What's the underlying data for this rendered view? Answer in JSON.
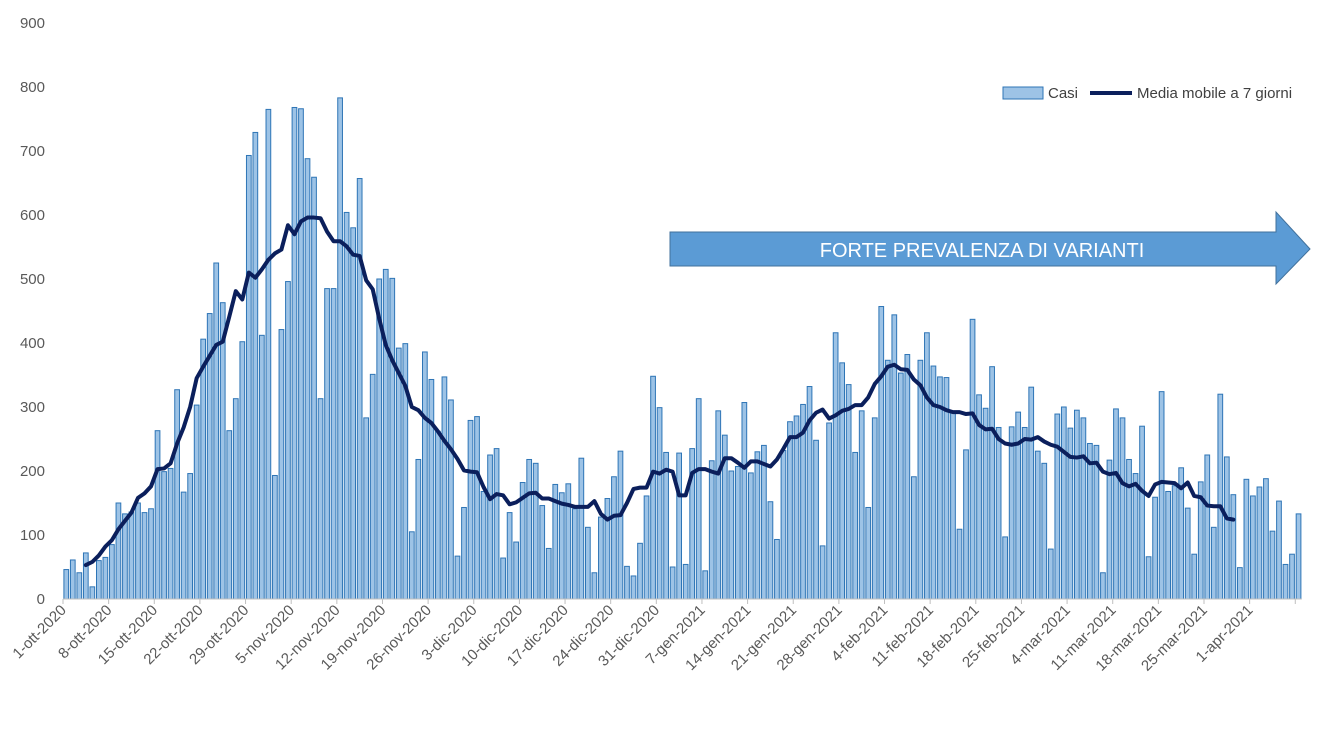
{
  "colors": {
    "bar_fill": "#9DC3E6",
    "bar_stroke": "#2E75B6",
    "line": "#0B1F5C",
    "axis": "#BFBFBF",
    "banner": "#5B9BD5"
  },
  "legend": {
    "bars_label": "Casi",
    "line_label": "Media mobile a 7 giorni"
  },
  "banner": {
    "text": "FORTE PREVALENZA DI VARIANTI",
    "start_date": "31-dic-2020"
  },
  "chart_data": {
    "type": "bar",
    "ylim": [
      0,
      900
    ],
    "yticks": [
      0,
      100,
      200,
      300,
      400,
      500,
      600,
      700,
      800,
      900
    ],
    "xtick_labels": [
      "1-ott-2020",
      "8-ott-2020",
      "15-ott-2020",
      "22-ott-2020",
      "29-ott-2020",
      "5-nov-2020",
      "12-nov-2020",
      "19-nov-2020",
      "26-nov-2020",
      "3-dic-2020",
      "10-dic-2020",
      "17-dic-2020",
      "24-dic-2020",
      "31-dic-2020",
      "7-gen-2021",
      "14-gen-2021",
      "21-gen-2021",
      "28-gen-2021",
      "4-feb-2021",
      "11-feb-2021",
      "18-feb-2021",
      "25-feb-2021",
      "4-mar-2021",
      "11-mar-2021",
      "18-mar-2021",
      "25-mar-2021",
      "1-apr-2021"
    ],
    "series": [
      {
        "name": "Casi",
        "type": "bar",
        "values": [
          46,
          61,
          41,
          72,
          19,
          60,
          65,
          85,
          150,
          133,
          136,
          150,
          135,
          141,
          263,
          199,
          204,
          327,
          167,
          196,
          303,
          406,
          446,
          525,
          463,
          263,
          313,
          402,
          693,
          729,
          412,
          765,
          193,
          421,
          496,
          768,
          766,
          688,
          659,
          313,
          485,
          485,
          783,
          604,
          580,
          657,
          283,
          351,
          500,
          515,
          501,
          392,
          399,
          105,
          218,
          386,
          343,
          262,
          347,
          311,
          67,
          143,
          279,
          285,
          168,
          225,
          235,
          64,
          135,
          89,
          182,
          218,
          212,
          146,
          79,
          179,
          166,
          180,
          141,
          220,
          112,
          41,
          128,
          157,
          191,
          231,
          51,
          36,
          87,
          161,
          348,
          299,
          229,
          50,
          228,
          54,
          235,
          313,
          44,
          216,
          294,
          256,
          200,
          207,
          307,
          197,
          230,
          240,
          152,
          93,
          232,
          277,
          286,
          304,
          332,
          248,
          83,
          275,
          416,
          369,
          335,
          229,
          294,
          143,
          283,
          457,
          373,
          444,
          353,
          382,
          191,
          373,
          416,
          364,
          347,
          346,
          291,
          109,
          233,
          437,
          319,
          298,
          363,
          268,
          97,
          269,
          292,
          268,
          331,
          231,
          212,
          78,
          289,
          300,
          267,
          295,
          283,
          243,
          240,
          41,
          217,
          297,
          283,
          218,
          196,
          270,
          66,
          159,
          324,
          168,
          177,
          205,
          142,
          70,
          183,
          225,
          112,
          320,
          222,
          163,
          49,
          187,
          161,
          175,
          188,
          106,
          153,
          54,
          70,
          133
        ]
      },
      {
        "name": "Media mobile a 7 giorni",
        "type": "line",
        "start_index": 3,
        "values": [
          53,
          58,
          68,
          82,
          92,
          109,
          122,
          135,
          158,
          165,
          176,
          203,
          204,
          212,
          243,
          268,
          300,
          345,
          363,
          380,
          397,
          402,
          441,
          481,
          468,
          510,
          502,
          515,
          530,
          540,
          546,
          584,
          570,
          590,
          596,
          596,
          595,
          574,
          559,
          559,
          551,
          538,
          536,
          498,
          484,
          438,
          397,
          373,
          353,
          333,
          300,
          295,
          283,
          275,
          262,
          247,
          234,
          219,
          201,
          199,
          198,
          175,
          156,
          164,
          162,
          148,
          151,
          158,
          165,
          166,
          157,
          157,
          153,
          149,
          147,
          144,
          144,
          144,
          153,
          133,
          124,
          130,
          131,
          150,
          172,
          174,
          174,
          199,
          196,
          202,
          199,
          162,
          162,
          197,
          203,
          203,
          199,
          196,
          220,
          220,
          213,
          205,
          215,
          215,
          211,
          207,
          218,
          235,
          253,
          253,
          260,
          279,
          291,
          296,
          282,
          287,
          294,
          297,
          303,
          303,
          315,
          336,
          348,
          363,
          366,
          359,
          358,
          343,
          334,
          315,
          303,
          300,
          295,
          292,
          292,
          289,
          290,
          272,
          265,
          266,
          250,
          243,
          241,
          243,
          250,
          249,
          253,
          246,
          241,
          238,
          230,
          222,
          221,
          223,
          212,
          213,
          199,
          195,
          197,
          181,
          176,
          180,
          169,
          161,
          179,
          183,
          182,
          181,
          173,
          182,
          161,
          159,
          146,
          145,
          145,
          126,
          124
        ]
      }
    ]
  }
}
